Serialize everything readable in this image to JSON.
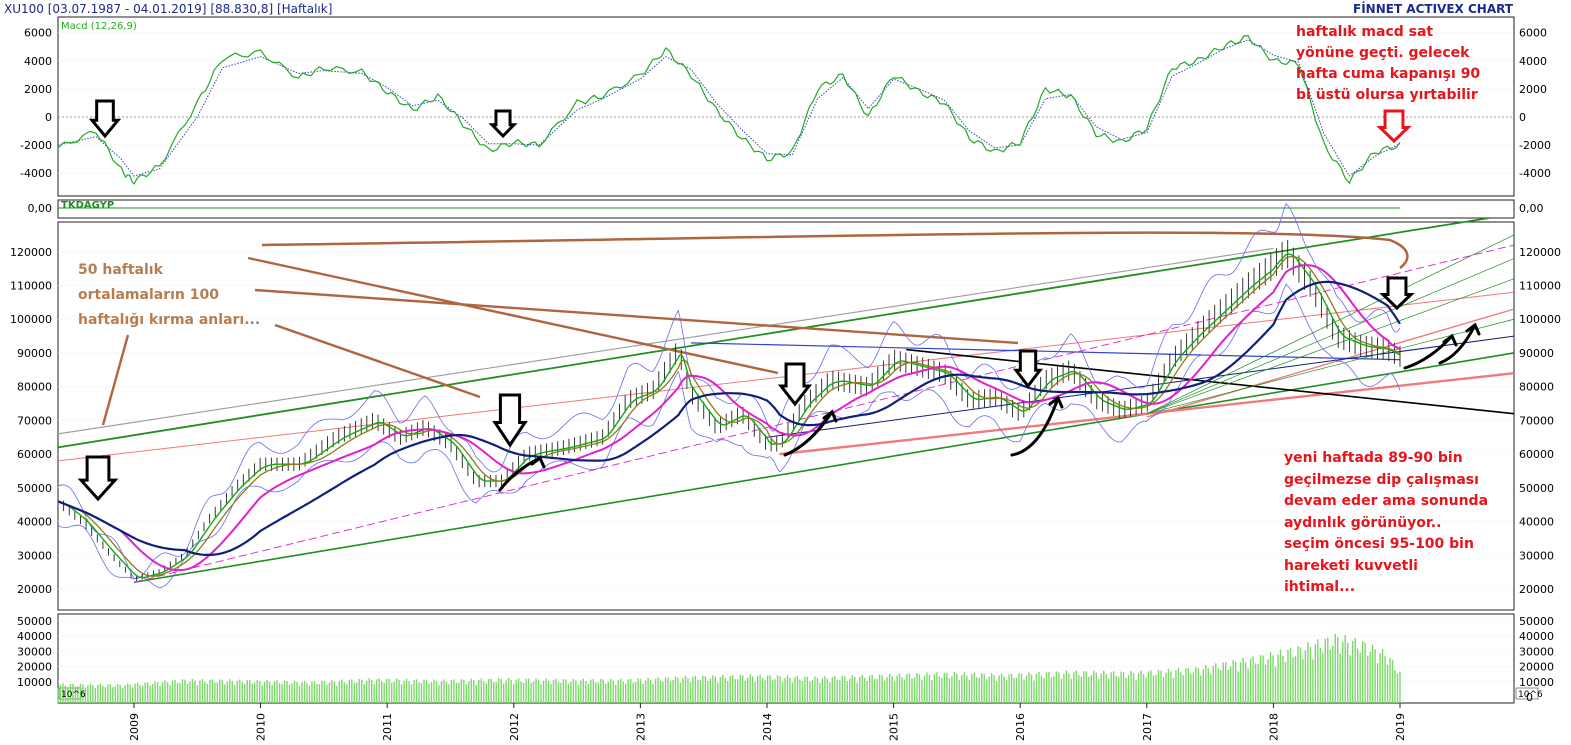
{
  "header": {
    "symbol": "XU100",
    "range": "[03.07.1987 - 04.01.2019]",
    "last": "[88.830,8]",
    "period": "[Haftalık]",
    "brand": "FİNNET ACTIVEX CHART"
  },
  "notes": {
    "top_right": [
      "haftalık macd sat",
      "yönüne geçti. gelecek",
      "hafta cuma kapanışı 90",
      "bi üstü olursa yırtabilir"
    ],
    "left": [
      "50 haftalık",
      "ortalamaların 100",
      "haftalığı kırma anları..."
    ],
    "bottom_right": [
      "yeni haftada 89-90 bin",
      "geçilmezse dip çalışması",
      "devam eder ama sonunda",
      "aydınlık görünüyor..",
      "seçim öncesi 95-100 bin",
      "hareketi kuvvetli",
      "ihtimal..."
    ]
  },
  "colors": {
    "note_red": "#e8141c",
    "note_brown": "#b87d4f",
    "macd": "#22aa22",
    "signal": "#3344cc",
    "ma_short": "#11aa11",
    "ma_mid": "#8b7b1a",
    "ma_50": "#e020d0",
    "ma_100": "#10207a",
    "bollinger": "#6a6aee",
    "volume": "#7dd86a",
    "trend_green": "#1f8f1f",
    "trend_pink": "#f07a7a",
    "trend_black": "#000000",
    "trend_grey": "#a0a0a0",
    "arrow_brown": "#b0653e",
    "header": "#1b2a8c"
  },
  "chart_data": [
    {
      "panel": "macd",
      "type": "line",
      "title": "Macd (12,26,9)",
      "ylim": [
        -5500,
        6500
      ],
      "yticks": [
        -4000,
        -2000,
        0,
        2000,
        4000,
        6000
      ],
      "x": [
        2008.4,
        2008.7,
        2008.9,
        2009.0,
        2009.2,
        2009.5,
        2009.7,
        2010.0,
        2010.3,
        2010.5,
        2010.8,
        2011.0,
        2011.2,
        2011.4,
        2011.6,
        2011.8,
        2012.0,
        2012.2,
        2012.5,
        2012.7,
        2013.0,
        2013.2,
        2013.4,
        2013.6,
        2013.8,
        2014.0,
        2014.2,
        2014.4,
        2014.6,
        2014.8,
        2015.0,
        2015.2,
        2015.4,
        2015.6,
        2015.8,
        2016.0,
        2016.2,
        2016.4,
        2016.6,
        2016.8,
        2017.0,
        2017.2,
        2017.4,
        2017.6,
        2017.8,
        2018.0,
        2018.2,
        2018.4,
        2018.6,
        2018.8,
        2019.0
      ],
      "series": [
        {
          "values": [
            -2200,
            -1000,
            -3800,
            -4600,
            -3500,
            1000,
            4200,
            4600,
            2800,
            3500,
            3200,
            1800,
            500,
            1500,
            -500,
            -2400,
            -1800,
            -2000,
            1000,
            1500,
            3000,
            4800,
            3000,
            500,
            -1500,
            -3000,
            -2500,
            2000,
            3000,
            0,
            3000,
            1800,
            1000,
            -1500,
            -2500,
            -1800,
            2000,
            1500,
            -1200,
            -1800,
            -800,
            3500,
            4000,
            5000,
            5700,
            4000,
            3800,
            -2000,
            -4600,
            -2500,
            -2000
          ]
        },
        {
          "values": [
            -2000,
            -1400,
            -3000,
            -4200,
            -3700,
            0,
            3500,
            4300,
            3100,
            3300,
            3100,
            2100,
            800,
            1200,
            -100,
            -1900,
            -1900,
            -2000,
            500,
            1300,
            2700,
            4300,
            3400,
            1000,
            -900,
            -2600,
            -2700,
            1300,
            2800,
            600,
            2700,
            2000,
            1200,
            -1000,
            -2200,
            -2000,
            1300,
            1600,
            -700,
            -1600,
            -1100,
            2900,
            3800,
            4800,
            5500,
            4400,
            3900,
            -1200,
            -4200,
            -2800,
            -1900
          ]
        }
      ]
    },
    {
      "panel": "indicator",
      "type": "line",
      "title": "TKDAGYP",
      "yticks": [
        0
      ],
      "tick_labels": [
        "0,00"
      ],
      "values": [
        0
      ]
    },
    {
      "panel": "price",
      "type": "line",
      "ylim": [
        15000,
        130000
      ],
      "yticks": [
        20000,
        30000,
        40000,
        50000,
        60000,
        70000,
        80000,
        90000,
        100000,
        110000,
        120000
      ],
      "x": [
        2008.4,
        2008.6,
        2008.8,
        2009.0,
        2009.2,
        2009.4,
        2009.6,
        2009.8,
        2010.0,
        2010.3,
        2010.6,
        2010.9,
        2011.1,
        2011.3,
        2011.5,
        2011.7,
        2011.9,
        2012.1,
        2012.4,
        2012.7,
        2012.9,
        2013.1,
        2013.3,
        2013.4,
        2013.6,
        2013.8,
        2014.0,
        2014.1,
        2014.3,
        2014.5,
        2014.8,
        2015.0,
        2015.2,
        2015.4,
        2015.6,
        2015.8,
        2016.0,
        2016.2,
        2016.4,
        2016.6,
        2016.8,
        2017.0,
        2017.2,
        2017.4,
        2017.6,
        2017.8,
        2018.0,
        2018.1,
        2018.3,
        2018.5,
        2018.7,
        2018.9,
        2019.0
      ],
      "series": [
        {
          "values": [
            46000,
            40000,
            31000,
            23000,
            25000,
            30000,
            41000,
            50000,
            57000,
            57000,
            65000,
            70000,
            65000,
            68000,
            63000,
            52000,
            52000,
            60000,
            62000,
            65000,
            76000,
            79000,
            91000,
            78000,
            68000,
            72000,
            63000,
            63000,
            75000,
            82000,
            80000,
            88000,
            86000,
            84000,
            76000,
            77000,
            72000,
            82000,
            85000,
            76000,
            73000,
            75000,
            88000,
            96000,
            103000,
            110000,
            116000,
            120000,
            110000,
            95000,
            92000,
            91000,
            89000
          ]
        }
      ]
    },
    {
      "panel": "volume",
      "type": "bar",
      "ylim": [
        0,
        55000
      ],
      "yticks": [
        0,
        10000,
        20000,
        30000,
        40000,
        50000
      ],
      "unit_label": "10^6",
      "x": [
        2008.4,
        2008.9,
        2009.4,
        2009.9,
        2010.4,
        2010.9,
        2011.4,
        2011.9,
        2012.4,
        2012.9,
        2013.4,
        2013.9,
        2014.4,
        2014.9,
        2015.4,
        2015.9,
        2016.4,
        2016.9,
        2017.4,
        2017.9,
        2018.2,
        2018.5,
        2018.7,
        2018.9,
        2019.0
      ],
      "series": [
        {
          "values": [
            9000,
            8500,
            12000,
            11500,
            10500,
            12500,
            11500,
            12500,
            12000,
            12000,
            14000,
            15000,
            13500,
            15000,
            16500,
            15500,
            17500,
            17000,
            20000,
            28000,
            34000,
            42000,
            38000,
            30000,
            17000
          ]
        }
      ]
    },
    {
      "panel": "time_axis",
      "type": "table",
      "x_ticks": [
        2009,
        2010,
        2011,
        2012,
        2013,
        2014,
        2015,
        2016,
        2017,
        2018,
        2019
      ],
      "tick_labels": [
        "2009",
        "2010",
        "2011",
        "2012",
        "2013",
        "2014",
        "2015",
        "2016",
        "2017",
        "2018",
        "2019"
      ]
    }
  ]
}
